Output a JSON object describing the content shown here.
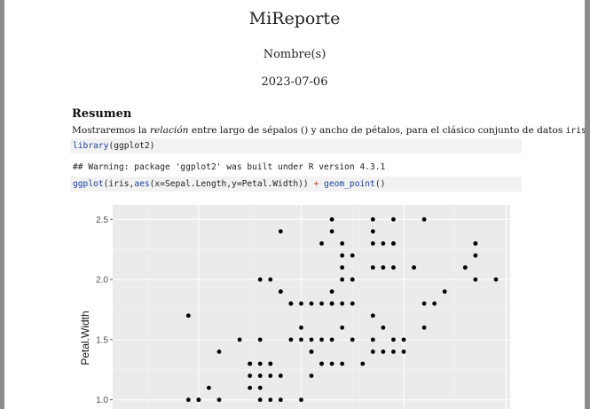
{
  "document": {
    "title": "MiReporte",
    "author": "Nombre(s)",
    "date": "2023-07-06"
  },
  "abstract": {
    "heading": "Resumen",
    "text_before": "Mostraremos la ",
    "emphasis": "relación",
    "text_middle": " entre largo de sépalos () y ancho de pétalos, para el clásico conjunto de datos ",
    "dataset_code": "iris",
    "text_after": "."
  },
  "code": {
    "line1_fn": "library",
    "line1_rest": "(ggplot2)",
    "warning": "## Warning: package 'ggplot2' was built under R version 4.3.1",
    "line2_fn": "ggplot",
    "line2_a": "(iris,",
    "line2_aes": "aes",
    "line2_b": "(x=Sepal.Length,y=Petal.Width)) ",
    "line2_plus": "+",
    "line2_space": " ",
    "line2_geom": "geom_point",
    "line2_end": "()"
  },
  "chart_data": {
    "type": "scatter",
    "title": "",
    "xlabel": "",
    "ylabel": "Petal.Width",
    "y_ticks": [
      "1.0",
      "1.5",
      "2.0",
      "2.5"
    ],
    "xlim": [
      4.3,
      7.9
    ],
    "ylim": [
      0.85,
      2.62
    ],
    "grid": true,
    "points": [
      [
        4.9,
        1.0
      ],
      [
        5.0,
        1.0
      ],
      [
        5.2,
        1.4
      ],
      [
        5.5,
        1.3
      ],
      [
        5.4,
        1.5
      ],
      [
        5.6,
        1.1
      ],
      [
        5.7,
        1.3
      ],
      [
        5.8,
        1.2
      ],
      [
        5.9,
        1.5
      ],
      [
        6.0,
        1.0
      ],
      [
        6.1,
        1.4
      ],
      [
        6.2,
        1.3
      ],
      [
        6.3,
        1.3
      ],
      [
        6.4,
        1.3
      ],
      [
        6.5,
        1.5
      ],
      [
        6.6,
        1.3
      ],
      [
        6.7,
        1.4
      ],
      [
        6.8,
        1.4
      ],
      [
        6.9,
        1.5
      ],
      [
        7.0,
        1.4
      ],
      [
        5.5,
        1.2
      ],
      [
        5.0,
        1.0
      ],
      [
        6.0,
        1.6
      ],
      [
        6.1,
        1.2
      ],
      [
        5.6,
        1.3
      ],
      [
        5.7,
        1.2
      ],
      [
        5.8,
        1.0
      ],
      [
        5.9,
        1.8
      ],
      [
        6.3,
        1.5
      ],
      [
        6.7,
        1.5
      ],
      [
        5.6,
        1.5
      ],
      [
        6.0,
        1.5
      ],
      [
        5.1,
        1.1
      ],
      [
        5.2,
        1.0
      ],
      [
        5.6,
        1.0
      ],
      [
        5.5,
        1.1
      ],
      [
        5.7,
        1.0
      ],
      [
        5.5,
        1.3
      ],
      [
        5.6,
        1.2
      ],
      [
        6.2,
        1.5
      ],
      [
        6.3,
        1.8
      ],
      [
        5.8,
        1.9
      ],
      [
        7.1,
        2.1
      ],
      [
        6.5,
        2.2
      ],
      [
        7.6,
        2.1
      ],
      [
        4.9,
        1.7
      ],
      [
        7.3,
        1.8
      ],
      [
        7.2,
        2.5
      ],
      [
        6.4,
        2.0
      ],
      [
        6.8,
        2.1
      ],
      [
        5.7,
        2.0
      ],
      [
        6.4,
        2.3
      ],
      [
        7.7,
        2.2
      ],
      [
        7.7,
        2.3
      ],
      [
        6.9,
        2.3
      ],
      [
        5.6,
        2.0
      ],
      [
        7.7,
        2.0
      ],
      [
        6.3,
        1.8
      ],
      [
        6.7,
        2.1
      ],
      [
        6.1,
        1.8
      ],
      [
        6.4,
        2.1
      ],
      [
        7.2,
        1.6
      ],
      [
        7.4,
        1.9
      ],
      [
        7.9,
        2.0
      ],
      [
        6.4,
        2.2
      ],
      [
        6.1,
        1.4
      ],
      [
        7.7,
        2.3
      ],
      [
        6.3,
        2.4
      ],
      [
        6.4,
        1.8
      ],
      [
        6.0,
        1.8
      ],
      [
        6.9,
        2.1
      ],
      [
        6.7,
        2.4
      ],
      [
        6.9,
        2.3
      ],
      [
        5.8,
        1.9
      ],
      [
        6.8,
        2.3
      ],
      [
        6.7,
        2.5
      ],
      [
        6.7,
        2.3
      ],
      [
        6.3,
        1.9
      ],
      [
        6.5,
        2.0
      ],
      [
        6.2,
        2.3
      ],
      [
        5.9,
        1.8
      ],
      [
        5.8,
        2.4
      ],
      [
        6.5,
        1.8
      ],
      [
        7.2,
        1.8
      ],
      [
        5.7,
        1.3
      ],
      [
        6.2,
        1.8
      ],
      [
        6.3,
        2.5
      ],
      [
        6.9,
        2.5
      ],
      [
        6.5,
        2.0
      ],
      [
        6.4,
        1.6
      ],
      [
        6.2,
        1.3
      ],
      [
        6.9,
        1.4
      ],
      [
        7.0,
        1.5
      ],
      [
        6.8,
        1.6
      ],
      [
        6.1,
        1.5
      ],
      [
        6.7,
        1.7
      ]
    ]
  },
  "colors": {
    "panel_bg": "#ebebeb",
    "grid_major": "#ffffff",
    "point": "#000000",
    "keyword": "#1a3fa0",
    "operator": "#c0392b"
  }
}
